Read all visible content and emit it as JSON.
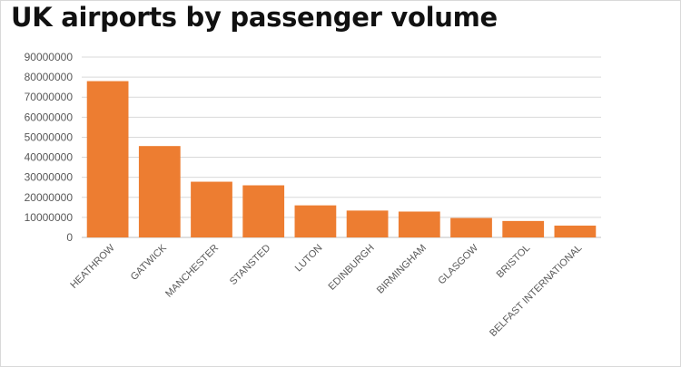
{
  "title": "UK airports by passenger volume",
  "chart_data": {
    "type": "bar",
    "title": "UK airports by passenger volume",
    "xlabel": "",
    "ylabel": "",
    "categories": [
      "HEATHROW",
      "GATWICK",
      "MANCHESTER",
      "STANSTED",
      "LUTON",
      "EDINBURGH",
      "BIRMINGHAM",
      "GLASGOW",
      "BRISTOL",
      "BELFAST INTERNATIONAL"
    ],
    "values": [
      78000000,
      45600000,
      27800000,
      26000000,
      16000000,
      13400000,
      12900000,
      9700000,
      8200000,
      5900000
    ],
    "ylim": [
      0,
      90000000
    ],
    "yticks": [
      0,
      10000000,
      20000000,
      30000000,
      40000000,
      50000000,
      60000000,
      70000000,
      80000000,
      90000000
    ],
    "grid": true,
    "legend": "none",
    "bar_color": "#ED7D31"
  }
}
